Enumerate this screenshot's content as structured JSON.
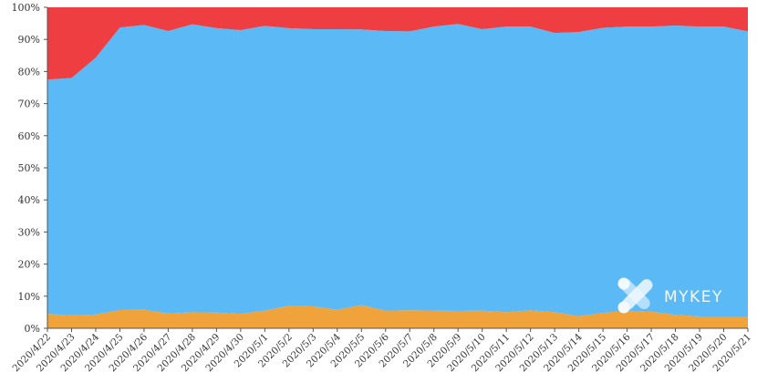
{
  "chart_data": {
    "type": "area",
    "stacked": true,
    "normalized": true,
    "categories": [
      "2020/4/22",
      "2020/4/23",
      "2020/4/24",
      "2020/4/25",
      "2020/4/26",
      "2020/4/27",
      "2020/4/28",
      "2020/4/29",
      "2020/4/30",
      "2020/5/1",
      "2020/5/2",
      "2020/5/3",
      "2020/5/4",
      "2020/5/5",
      "2020/5/6",
      "2020/5/7",
      "2020/5/8",
      "2020/5/9",
      "2020/5/10",
      "2020/5/11",
      "2020/5/12",
      "2020/5/13",
      "2020/5/14",
      "2020/5/15",
      "2020/5/16",
      "2020/5/17",
      "2020/5/18",
      "2020/5/19",
      "2020/5/20",
      "2020/5/21"
    ],
    "series": [
      {
        "color": "#f0a33a",
        "values": [
          4.5,
          4.0,
          4.3,
          5.7,
          5.8,
          4.6,
          5.0,
          4.9,
          4.5,
          5.5,
          7.0,
          6.8,
          5.8,
          7.2,
          5.5,
          5.6,
          5.5,
          5.4,
          5.5,
          5.0,
          5.6,
          5.0,
          3.8,
          4.8,
          5.5,
          5.2,
          4.2,
          3.7,
          3.7,
          3.7
        ]
      },
      {
        "color": "#5bb9f5",
        "values": [
          73.0,
          74.0,
          80.0,
          88.0,
          88.7,
          88.0,
          89.7,
          88.6,
          88.4,
          88.7,
          86.5,
          86.4,
          87.4,
          85.9,
          87.1,
          86.9,
          88.5,
          89.4,
          87.7,
          89.0,
          88.4,
          87.0,
          88.5,
          88.8,
          88.5,
          88.8,
          90.1,
          90.3,
          90.3,
          88.8
        ]
      },
      {
        "color": "#ee3e41",
        "values": [
          22.5,
          22.0,
          15.7,
          6.3,
          5.5,
          7.4,
          5.3,
          6.5,
          7.1,
          5.8,
          6.5,
          6.8,
          6.8,
          6.9,
          7.4,
          7.5,
          6.0,
          5.2,
          6.8,
          6.0,
          6.0,
          8.0,
          7.7,
          6.4,
          6.0,
          6.0,
          5.7,
          6.0,
          6.0,
          7.5
        ]
      }
    ],
    "y_ticks": [
      "0%",
      "10%",
      "20%",
      "30%",
      "40%",
      "50%",
      "60%",
      "70%",
      "80%",
      "90%",
      "100%"
    ],
    "ylim": [
      0,
      100
    ],
    "grid": false,
    "legend": "none"
  },
  "watermark": {
    "text": "MYKEY",
    "icon": "mykey-logo-icon"
  }
}
